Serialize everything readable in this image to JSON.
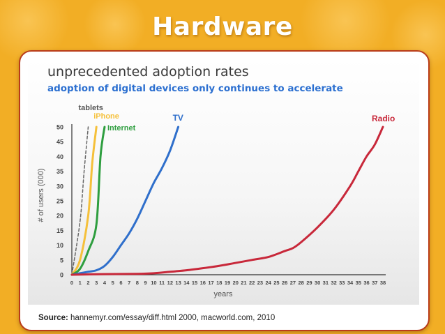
{
  "slide": {
    "title": "Hardware",
    "source_label": "Source:",
    "source_text": "hannemyr.com/essay/diff.html 2000, macworld.com, 2010"
  },
  "chart_data": {
    "type": "line",
    "title": "unprecedented adoption rates",
    "subtitle": "adoption of digital devices only continues to accelerate",
    "xlabel": "years",
    "ylabel": "# of users (000)",
    "xlim": [
      0,
      38
    ],
    "ylim": [
      0,
      50
    ],
    "x_ticks": [
      0,
      1,
      2,
      3,
      4,
      5,
      6,
      7,
      8,
      9,
      10,
      11,
      12,
      13,
      14,
      15,
      16,
      17,
      18,
      19,
      20,
      21,
      22,
      23,
      24,
      25,
      26,
      27,
      28,
      29,
      30,
      31,
      32,
      33,
      34,
      35,
      36,
      37,
      38
    ],
    "y_ticks": [
      0,
      5,
      10,
      15,
      20,
      25,
      30,
      35,
      40,
      45,
      50
    ],
    "series": [
      {
        "name": "tablets",
        "color": "#666666",
        "dashed": true,
        "x": [
          0,
          1.0,
          1.5,
          2.0
        ],
        "y": [
          0,
          18,
          35,
          50
        ]
      },
      {
        "name": "iPhone",
        "color": "#f5c03a",
        "dashed": false,
        "x": [
          0,
          1,
          2,
          2.5,
          3.0
        ],
        "y": [
          0,
          5,
          20,
          38,
          50
        ]
      },
      {
        "name": "Internet",
        "color": "#2e9e3f",
        "dashed": false,
        "x": [
          0,
          1,
          2,
          3,
          3.5,
          4.0
        ],
        "y": [
          0,
          2,
          8,
          17,
          40,
          50
        ]
      },
      {
        "name": "TV",
        "color": "#2f6fcb",
        "dashed": false,
        "x": [
          0,
          1,
          2,
          3,
          4,
          5,
          6,
          7,
          8,
          9,
          10,
          11,
          12,
          13
        ],
        "y": [
          0,
          0.5,
          1,
          1.5,
          3,
          6,
          10,
          14,
          19,
          25,
          31,
          36,
          42,
          50
        ]
      },
      {
        "name": "Radio",
        "color": "#c8283a",
        "dashed": false,
        "x": [
          0,
          4,
          8,
          10,
          12,
          14,
          16,
          18,
          20,
          22,
          24,
          26,
          27,
          28,
          30,
          32,
          34,
          35,
          36,
          37,
          38
        ],
        "y": [
          0,
          0.2,
          0.3,
          0.5,
          1,
          1.5,
          2.2,
          3,
          4,
          5,
          6,
          8,
          9,
          11,
          16,
          22,
          30,
          35,
          40,
          44,
          50
        ]
      }
    ]
  }
}
